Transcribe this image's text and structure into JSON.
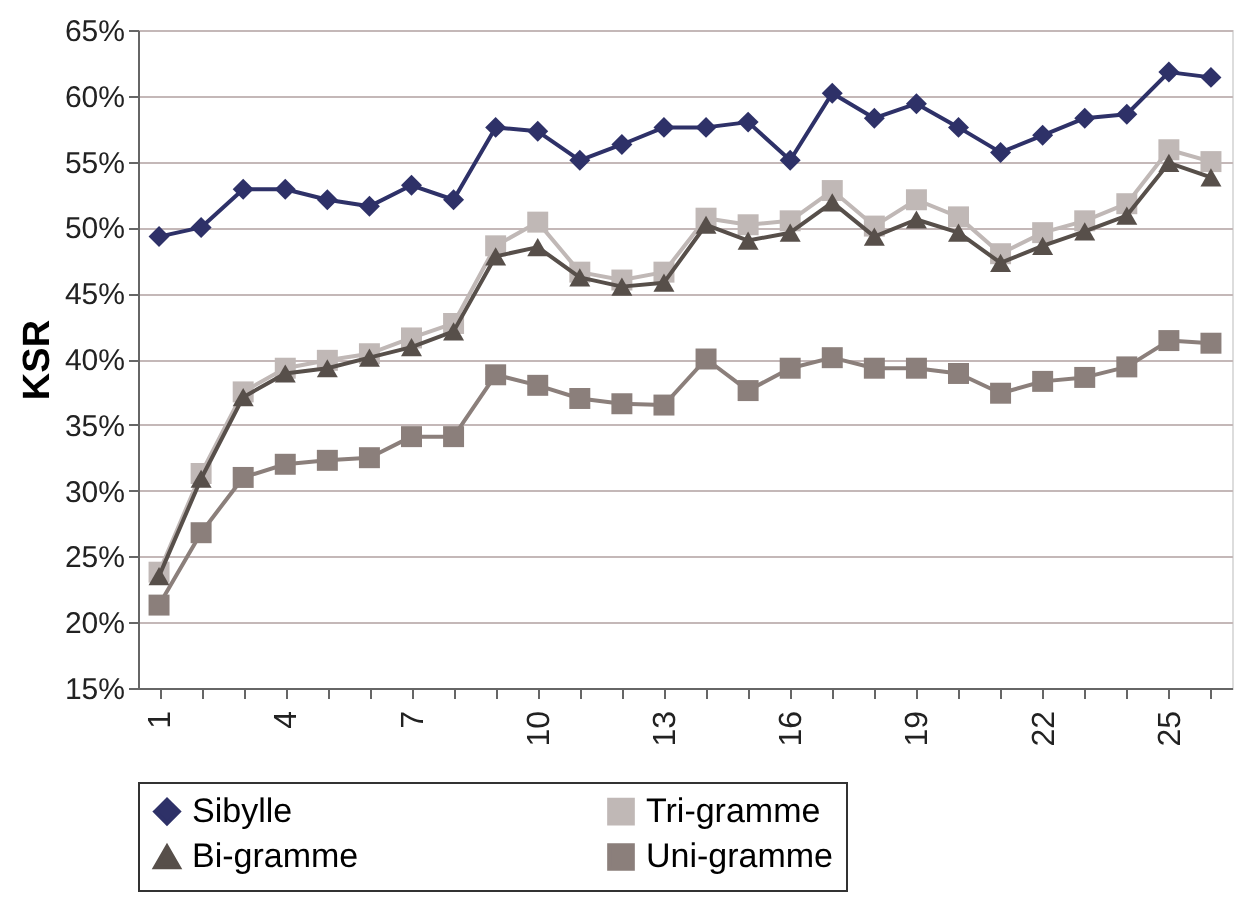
{
  "chart_data": {
    "type": "line",
    "ylabel": "KSR",
    "categories": [
      "1",
      null,
      null,
      "4",
      null,
      null,
      "7",
      null,
      null,
      "10",
      null,
      null,
      "13",
      null,
      null,
      "16",
      null,
      null,
      "19",
      null,
      null,
      "22",
      null,
      null,
      "25",
      null
    ],
    "series": [
      {
        "name": "Sibylle",
        "color": "#2e3168",
        "marker": "diamond",
        "values": [
          49.3,
          50.0,
          52.9,
          52.9,
          52.1,
          51.6,
          53.2,
          52.1,
          57.6,
          57.3,
          55.1,
          56.3,
          57.6,
          57.6,
          58.0,
          55.1,
          60.2,
          58.3,
          59.4,
          57.6,
          55.7,
          57.0,
          58.3,
          58.6,
          61.8,
          61.4
        ]
      },
      {
        "name": "Tri-gramme",
        "color": "#c0b8b6",
        "marker": "square",
        "values": [
          23.8,
          31.3,
          37.5,
          39.3,
          39.9,
          40.4,
          41.6,
          42.7,
          48.6,
          50.4,
          46.6,
          46.0,
          46.6,
          50.7,
          50.2,
          50.5,
          52.8,
          50.1,
          52.1,
          50.8,
          48.0,
          49.6,
          50.5,
          51.8,
          55.9,
          55.0
        ]
      },
      {
        "name": "Bi-gramme",
        "color": "#574f4a",
        "marker": "triangle",
        "values": [
          23.5,
          30.9,
          37.1,
          38.9,
          39.3,
          40.1,
          40.9,
          42.1,
          47.8,
          48.5,
          46.2,
          45.5,
          45.8,
          50.2,
          49.0,
          49.6,
          51.9,
          49.3,
          50.6,
          49.6,
          47.3,
          48.6,
          49.7,
          50.9,
          54.9,
          53.8
        ]
      },
      {
        "name": "Uni-gramme",
        "color": "#8b7f7b",
        "marker": "square",
        "values": [
          21.3,
          26.8,
          31.0,
          32.0,
          32.3,
          32.5,
          34.1,
          34.1,
          38.8,
          38.0,
          37.0,
          36.6,
          36.5,
          40.0,
          37.6,
          39.3,
          40.1,
          39.3,
          39.3,
          38.9,
          37.4,
          38.3,
          38.6,
          39.4,
          41.4,
          41.2
        ]
      }
    ],
    "ylim": [
      15,
      65
    ],
    "yticks": [
      {
        "value": 15,
        "label": "15%"
      },
      {
        "value": 20,
        "label": "20%"
      },
      {
        "value": 25,
        "label": "25%"
      },
      {
        "value": 30,
        "label": "30%"
      },
      {
        "value": 35,
        "label": "35%"
      },
      {
        "value": 40,
        "label": "40%"
      },
      {
        "value": 45,
        "label": "45%"
      },
      {
        "value": 50,
        "label": "50%"
      },
      {
        "value": 55,
        "label": "55%"
      },
      {
        "value": 60,
        "label": "60%"
      },
      {
        "value": 65,
        "label": "65%"
      }
    ],
    "grid": "y",
    "legend": "bottom",
    "line_style": "solid"
  }
}
